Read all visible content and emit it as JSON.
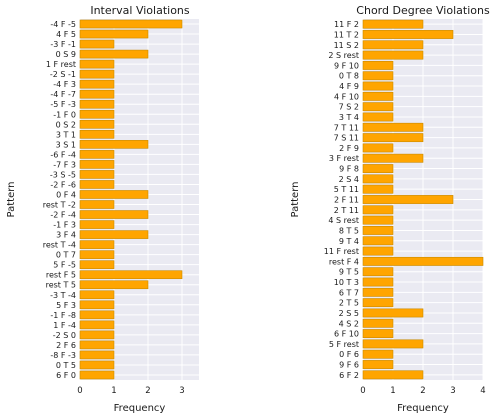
{
  "chart_data": [
    {
      "type": "bar",
      "orientation": "horizontal",
      "title": "Interval Violations",
      "xlabel": "Frequency",
      "ylabel": "Pattern",
      "xlim": [
        0,
        3.5
      ],
      "xticks": [
        0,
        1,
        2,
        3
      ],
      "grid": true,
      "bar_color": "#ffa500",
      "background_color": "#eaeaf2",
      "categories": [
        "-4 F -5",
        "4 F 5",
        "-3 F -1",
        "0 S 9",
        "1 F rest",
        "-2 S -1",
        "-4 F 3",
        "-4 F -7",
        "-5 F -3",
        "-1 F 0",
        "0 S 2",
        "3 T 1",
        "3 S 1",
        "-6 F -4",
        "-7 F 3",
        "-3 S -5",
        "-2 F -6",
        "0 F 4",
        "rest T -2",
        "-2 F -4",
        "-1 F 3",
        "3 F 4",
        "rest T -4",
        "0 T 7",
        "5 F -5",
        "rest F 5",
        "rest T 5",
        "-3 T -4",
        "5 F 3",
        "-1 F -8",
        "1 F -4",
        "-2 S 0",
        "2 F 6",
        "-8 F -3",
        "0 T 5",
        "6 F 0"
      ],
      "values": [
        3,
        2,
        1,
        2,
        1,
        1,
        1,
        1,
        1,
        1,
        1,
        1,
        2,
        1,
        1,
        1,
        1,
        2,
        1,
        2,
        1,
        2,
        1,
        1,
        1,
        3,
        2,
        1,
        1,
        1,
        1,
        1,
        1,
        1,
        1,
        1
      ]
    },
    {
      "type": "bar",
      "orientation": "horizontal",
      "title": "Chord Degree Violations",
      "xlabel": "Frequency",
      "ylabel": "Pattern",
      "xlim": [
        0,
        4
      ],
      "xticks": [
        0,
        1,
        2,
        3,
        4
      ],
      "grid": true,
      "bar_color": "#ffa500",
      "background_color": "#eaeaf2",
      "categories": [
        "11 F 2",
        "11 T 2",
        "11 S 2",
        "2 S rest",
        "9 F 10",
        "0 T 8",
        "4 F 9",
        "4 F 10",
        "7 S 2",
        "3 T 4",
        "7 T 11",
        "7 S 11",
        "2 F 9",
        "3 F rest",
        "9 F 8",
        "2 S 4",
        "5 T 11",
        "2 F 11",
        "2 T 11",
        "4 S rest",
        "8 T 5",
        "9 T 4",
        "11 F rest",
        "rest F 4",
        "9 T 5",
        "10 T 3",
        "6 T 7",
        "2 T 5",
        "2 S 5",
        "4 S 2",
        "6 F 10",
        "5 F rest",
        "0 F 6",
        "9 F 6",
        "6 F 2"
      ],
      "values": [
        2,
        3,
        2,
        2,
        1,
        1,
        1,
        1,
        1,
        1,
        2,
        2,
        1,
        2,
        1,
        1,
        1,
        3,
        1,
        1,
        1,
        1,
        1,
        4,
        1,
        1,
        1,
        1,
        2,
        1,
        1,
        2,
        1,
        1,
        2
      ]
    }
  ]
}
